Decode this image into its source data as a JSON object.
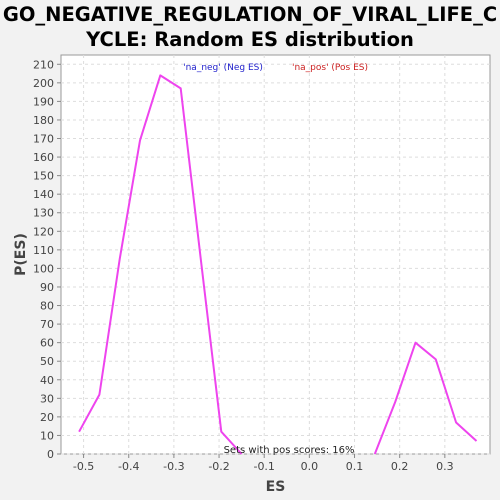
{
  "title_line1": "GO_NEGATIVE_REGULATION_OF_VIRAL_LIFE_C",
  "title_line2": "YCLE: Random ES distribution",
  "chart_data": {
    "type": "line",
    "xlabel": "ES",
    "ylabel": "P(ES)",
    "xlim": [
      -0.55,
      0.4
    ],
    "ylim": [
      0,
      215
    ],
    "xticks": [
      -0.5,
      -0.4,
      -0.3,
      -0.2,
      -0.1,
      0.0,
      0.1,
      0.2,
      0.3
    ],
    "xtick_labels": [
      "-0.5",
      "-0.4",
      "-0.3",
      "-0.2",
      "-0.1",
      "0.0",
      "0.1",
      "0.2",
      "0.3"
    ],
    "yticks": [
      0,
      10,
      20,
      30,
      40,
      50,
      60,
      70,
      80,
      90,
      100,
      110,
      120,
      130,
      140,
      150,
      160,
      170,
      180,
      190,
      200,
      210
    ],
    "grid": true,
    "legend": {
      "placement": "top",
      "entries": [
        {
          "label": "'na_neg' (Neg ES)",
          "color": "#2222cc"
        },
        {
          "label": "'na_pos' (Pos ES)",
          "color": "#cc2222"
        }
      ]
    },
    "line_color": "#ee44ee",
    "series": [
      {
        "x": [
          -0.51,
          -0.465,
          -0.42,
          -0.375,
          -0.33,
          -0.285,
          -0.24,
          -0.195,
          -0.15
        ],
        "y": [
          12,
          32,
          105,
          169,
          204,
          197,
          104,
          12,
          0
        ]
      },
      {
        "x": [
          0.145,
          0.19,
          0.235,
          0.28,
          0.325,
          0.37
        ],
        "y": [
          0,
          28,
          60,
          51,
          17,
          7
        ]
      }
    ],
    "annotation": "Sets with pos scores: 16%"
  }
}
